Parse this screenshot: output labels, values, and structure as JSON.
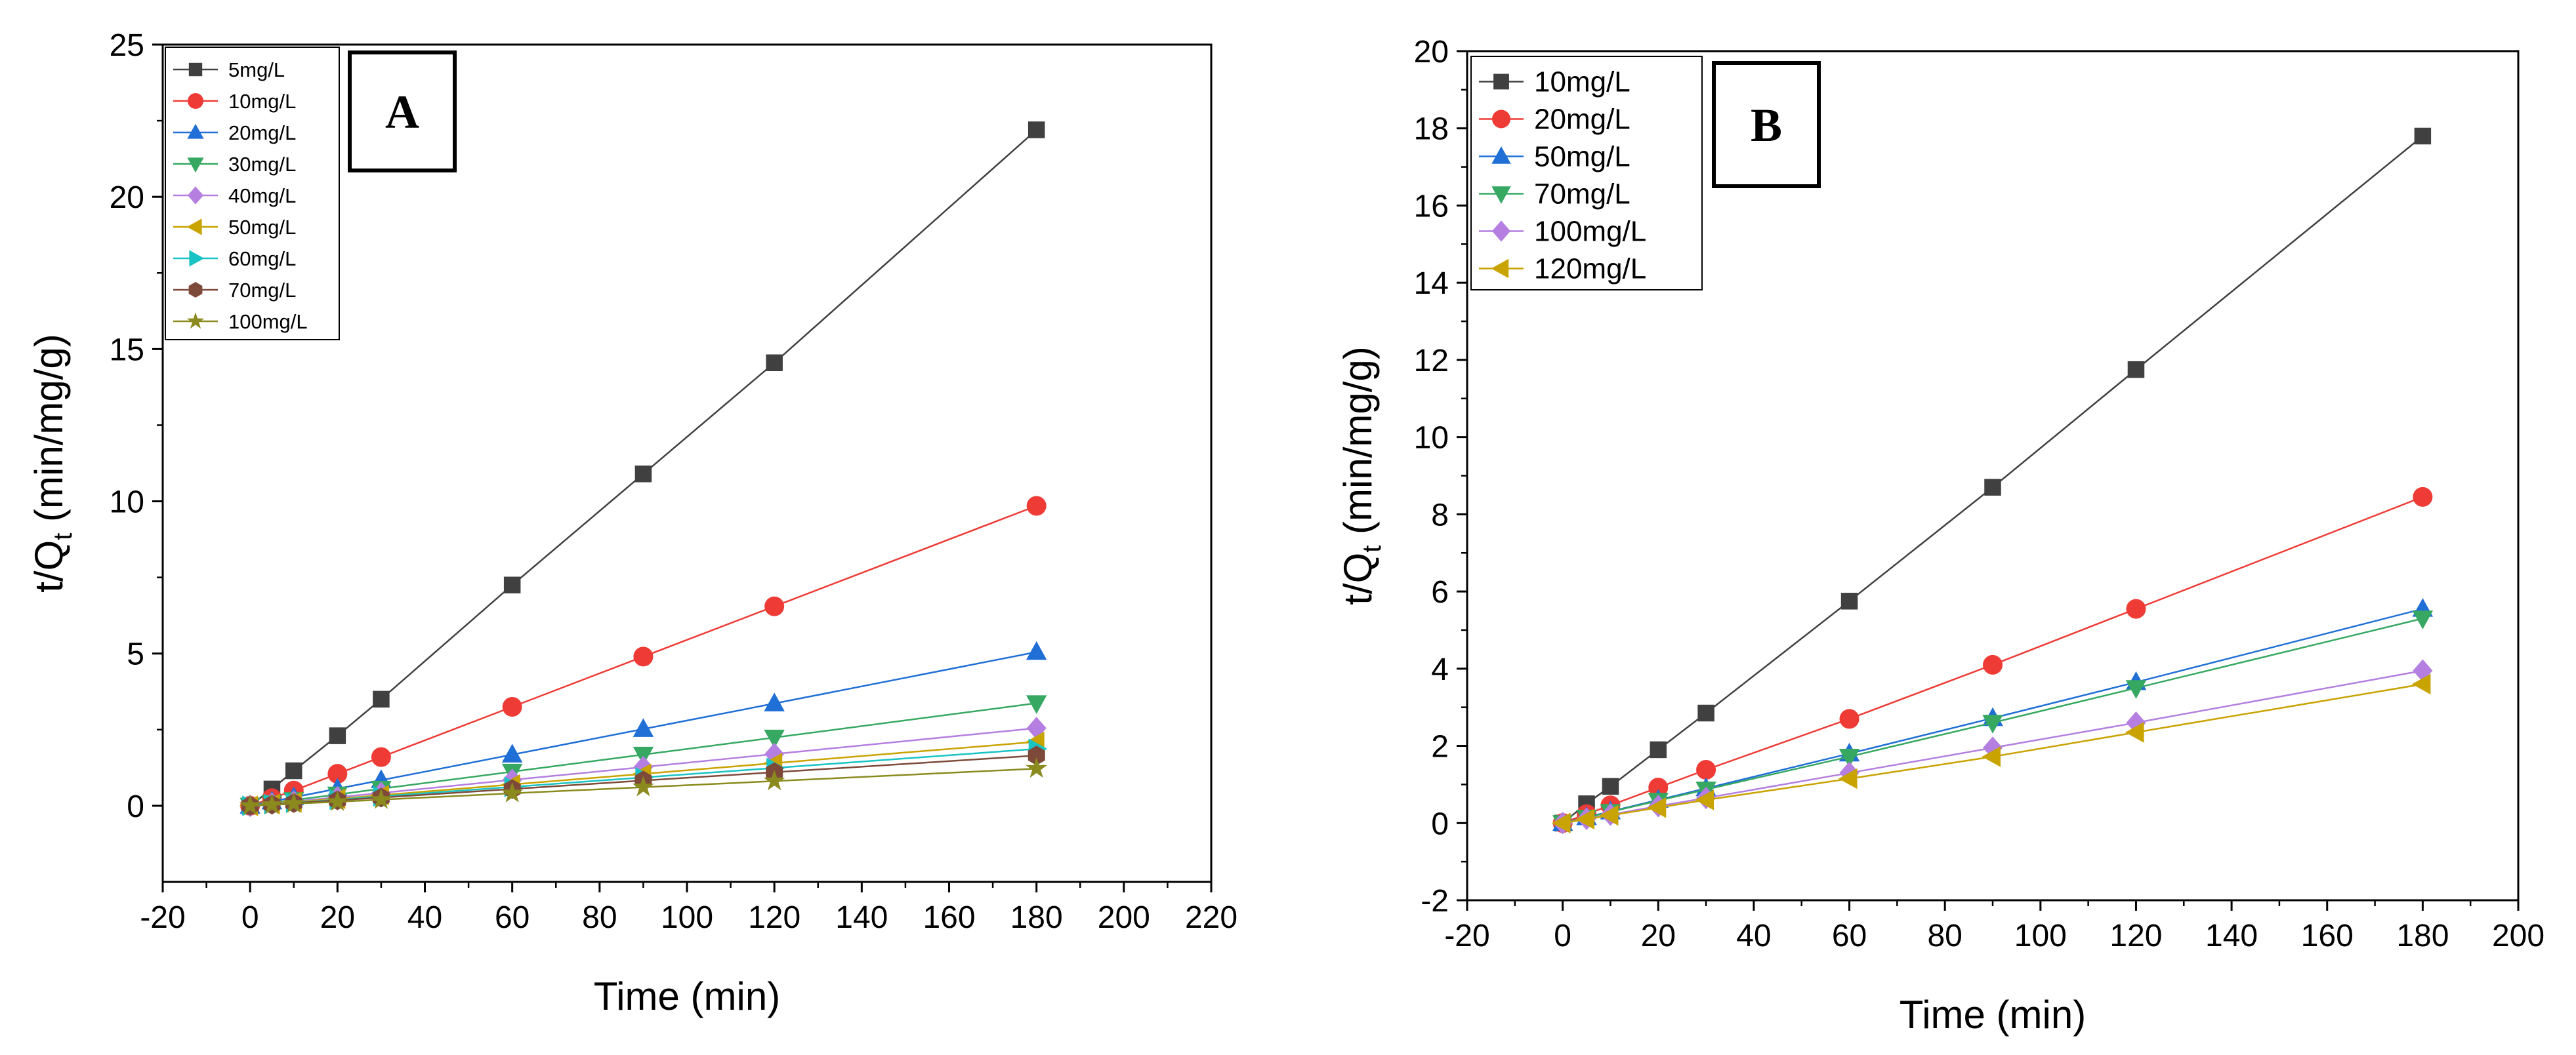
{
  "chart_data": [
    {
      "type": "line",
      "panel_label": "A",
      "xlabel": "Time (min)",
      "ylabel": "t/Q",
      "ylabel_sub": "t",
      "ylabel_tail": " (min/mg/g)",
      "xlim": [
        -20,
        220
      ],
      "ylim": [
        -2.5,
        25
      ],
      "xticks": [
        -20,
        0,
        20,
        40,
        60,
        80,
        100,
        120,
        140,
        160,
        180,
        200,
        220
      ],
      "yticks": [
        0,
        5,
        10,
        15,
        20,
        25
      ],
      "legend_position": "top-left",
      "x": [
        0,
        5,
        10,
        20,
        30,
        60,
        90,
        120,
        180
      ],
      "series": [
        {
          "name": "5mg/L",
          "marker": "square",
          "color": "#404040",
          "values": [
            0,
            0.55,
            1.15,
            2.3,
            3.5,
            7.25,
            10.9,
            14.55,
            22.2
          ]
        },
        {
          "name": "10mg/L",
          "marker": "circle",
          "color": "#ef3b36",
          "values": [
            0,
            0.25,
            0.5,
            1.05,
            1.6,
            3.25,
            4.9,
            6.55,
            9.85
          ]
        },
        {
          "name": "20mg/L",
          "marker": "triangle-up",
          "color": "#1f6fd6",
          "values": [
            0,
            0.14,
            0.28,
            0.56,
            0.84,
            1.68,
            2.52,
            3.36,
            5.05
          ]
        },
        {
          "name": "30mg/L",
          "marker": "triangle-down",
          "color": "#36a862",
          "values": [
            0,
            0.09,
            0.19,
            0.37,
            0.56,
            1.12,
            1.68,
            2.24,
            3.37
          ]
        },
        {
          "name": "40mg/L",
          "marker": "diamond",
          "color": "#b47fe0",
          "values": [
            0,
            0.07,
            0.14,
            0.28,
            0.42,
            0.85,
            1.27,
            1.7,
            2.55
          ]
        },
        {
          "name": "50mg/L",
          "marker": "triangle-left",
          "color": "#c9a300",
          "values": [
            0,
            0.06,
            0.12,
            0.23,
            0.35,
            0.7,
            1.05,
            1.4,
            2.1
          ]
        },
        {
          "name": "60mg/L",
          "marker": "triangle-right",
          "color": "#19c3c3",
          "values": [
            0,
            0.05,
            0.1,
            0.2,
            0.31,
            0.62,
            0.93,
            1.24,
            1.87
          ]
        },
        {
          "name": "70mg/L",
          "marker": "hexagon",
          "color": "#7d4a3a",
          "values": [
            0,
            0.04,
            0.09,
            0.18,
            0.27,
            0.55,
            0.83,
            1.1,
            1.65
          ]
        },
        {
          "name": "100mg/L",
          "marker": "star",
          "color": "#8a8a1e",
          "values": [
            0,
            0.03,
            0.07,
            0.13,
            0.2,
            0.41,
            0.61,
            0.81,
            1.22
          ]
        }
      ]
    },
    {
      "type": "line",
      "panel_label": "B",
      "xlabel": "Time (min)",
      "ylabel": "t/Q",
      "ylabel_sub": "t",
      "ylabel_tail": " (min/mg/g)",
      "xlim": [
        -20,
        200
      ],
      "ylim": [
        -2,
        20
      ],
      "xticks": [
        -20,
        0,
        20,
        40,
        60,
        80,
        100,
        120,
        140,
        160,
        180,
        200
      ],
      "yticks": [
        -2,
        0,
        2,
        4,
        6,
        8,
        10,
        12,
        14,
        16,
        18,
        20
      ],
      "legend_position": "top-left",
      "x": [
        0,
        5,
        10,
        20,
        30,
        60,
        90,
        120,
        180
      ],
      "series": [
        {
          "name": "10mg/L",
          "marker": "square",
          "color": "#404040",
          "values": [
            0,
            0.5,
            0.95,
            1.9,
            2.85,
            5.75,
            8.7,
            11.75,
            17.8
          ]
        },
        {
          "name": "20mg/L",
          "marker": "circle",
          "color": "#ef3b36",
          "values": [
            0,
            0.23,
            0.46,
            0.92,
            1.38,
            2.7,
            4.1,
            5.55,
            8.45
          ]
        },
        {
          "name": "50mg/L",
          "marker": "triangle-up",
          "color": "#1f6fd6",
          "values": [
            0,
            0.15,
            0.3,
            0.6,
            0.9,
            1.8,
            2.72,
            3.65,
            5.55
          ]
        },
        {
          "name": "70mg/L",
          "marker": "triangle-down",
          "color": "#36a862",
          "values": [
            0,
            0.14,
            0.29,
            0.58,
            0.87,
            1.72,
            2.6,
            3.5,
            5.3
          ]
        },
        {
          "name": "100mg/L",
          "marker": "diamond",
          "color": "#b47fe0",
          "values": [
            0,
            0.11,
            0.22,
            0.44,
            0.65,
            1.3,
            1.95,
            2.6,
            3.95
          ]
        },
        {
          "name": "120mg/L",
          "marker": "triangle-left",
          "color": "#c9a300",
          "values": [
            0,
            0.1,
            0.2,
            0.4,
            0.6,
            1.15,
            1.72,
            2.35,
            3.6
          ]
        }
      ]
    }
  ]
}
